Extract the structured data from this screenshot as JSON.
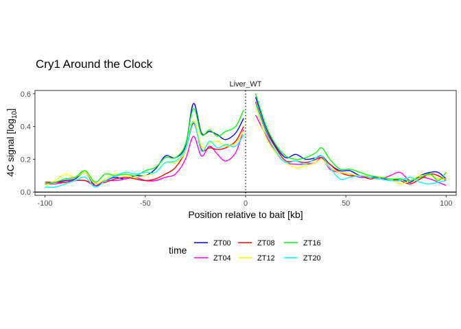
{
  "chart_data": {
    "type": "line",
    "title": "Cry1 Around the Clock",
    "facet_label": "Liver_WT",
    "xlabel": "Position relative to bait [kb]",
    "ylabel_main": "4C signal [log",
    "ylabel_sub": "10",
    "ylabel_close": "]",
    "xlim": [
      -105,
      105
    ],
    "ylim": [
      -0.02,
      0.62
    ],
    "x_ticks": [
      -100,
      -50,
      0,
      50,
      100
    ],
    "x_tick_labels": [
      "-100",
      "-50",
      "0",
      "50",
      "100"
    ],
    "y_ticks": [
      0.0,
      0.2,
      0.4,
      0.6
    ],
    "y_tick_labels": [
      "0.0",
      "0.2",
      "0.4",
      "0.6"
    ],
    "bait_position": 0,
    "hline": 0,
    "grid": false,
    "legend": {
      "title": "time",
      "placement": "bottom"
    },
    "series": [
      {
        "name": "ZT00",
        "color": "#0000ff",
        "left": [
          [
            -100,
            0.05
          ],
          [
            -95,
            0.06
          ],
          [
            -90,
            0.07
          ],
          [
            -85,
            0.08
          ],
          [
            -80,
            0.12
          ],
          [
            -75,
            0.04
          ],
          [
            -70,
            0.07
          ],
          [
            -65,
            0.09
          ],
          [
            -60,
            0.08
          ],
          [
            -55,
            0.1
          ],
          [
            -50,
            0.1
          ],
          [
            -45,
            0.14
          ],
          [
            -40,
            0.22
          ],
          [
            -35,
            0.21
          ],
          [
            -30,
            0.28
          ],
          [
            -26,
            0.54
          ],
          [
            -22,
            0.36
          ],
          [
            -18,
            0.37
          ],
          [
            -14,
            0.35
          ],
          [
            -10,
            0.32
          ],
          [
            -5,
            0.36
          ],
          [
            -1,
            0.45
          ]
        ],
        "right": [
          [
            5,
            0.58
          ],
          [
            10,
            0.4
          ],
          [
            15,
            0.28
          ],
          [
            20,
            0.21
          ],
          [
            25,
            0.23
          ],
          [
            30,
            0.2
          ],
          [
            35,
            0.21
          ],
          [
            38,
            0.22
          ],
          [
            42,
            0.17
          ],
          [
            47,
            0.13
          ],
          [
            52,
            0.13
          ],
          [
            57,
            0.1
          ],
          [
            62,
            0.09
          ],
          [
            67,
            0.09
          ],
          [
            72,
            0.07
          ],
          [
            77,
            0.08
          ],
          [
            82,
            0.06
          ],
          [
            87,
            0.1
          ],
          [
            92,
            0.12
          ],
          [
            96,
            0.12
          ],
          [
            100,
            0.08
          ]
        ]
      },
      {
        "name": "ZT04",
        "color": "#ff00ff",
        "left": [
          [
            -100,
            0.05
          ],
          [
            -95,
            0.05
          ],
          [
            -90,
            0.06
          ],
          [
            -85,
            0.07
          ],
          [
            -80,
            0.07
          ],
          [
            -75,
            0.04
          ],
          [
            -70,
            0.07
          ],
          [
            -65,
            0.07
          ],
          [
            -60,
            0.08
          ],
          [
            -55,
            0.09
          ],
          [
            -50,
            0.07
          ],
          [
            -45,
            0.07
          ],
          [
            -40,
            0.09
          ],
          [
            -35,
            0.11
          ],
          [
            -30,
            0.2
          ],
          [
            -26,
            0.34
          ],
          [
            -22,
            0.22
          ],
          [
            -18,
            0.28
          ],
          [
            -14,
            0.23
          ],
          [
            -10,
            0.19
          ],
          [
            -5,
            0.24
          ],
          [
            -1,
            0.38
          ]
        ],
        "right": [
          [
            5,
            0.47
          ],
          [
            10,
            0.35
          ],
          [
            15,
            0.24
          ],
          [
            20,
            0.18
          ],
          [
            25,
            0.17
          ],
          [
            30,
            0.17
          ],
          [
            35,
            0.18
          ],
          [
            38,
            0.21
          ],
          [
            42,
            0.14
          ],
          [
            47,
            0.12
          ],
          [
            52,
            0.11
          ],
          [
            57,
            0.09
          ],
          [
            62,
            0.09
          ],
          [
            67,
            0.08
          ],
          [
            72,
            0.1
          ],
          [
            77,
            0.12
          ],
          [
            82,
            0.07
          ],
          [
            87,
            0.09
          ],
          [
            92,
            0.08
          ],
          [
            96,
            0.06
          ],
          [
            100,
            0.04
          ]
        ]
      },
      {
        "name": "ZT08",
        "color": "#ff0000",
        "left": [
          [
            -100,
            0.06
          ],
          [
            -95,
            0.06
          ],
          [
            -90,
            0.06
          ],
          [
            -85,
            0.07
          ],
          [
            -80,
            0.07
          ],
          [
            -75,
            0.05
          ],
          [
            -70,
            0.06
          ],
          [
            -65,
            0.08
          ],
          [
            -60,
            0.09
          ],
          [
            -55,
            0.08
          ],
          [
            -50,
            0.07
          ],
          [
            -45,
            0.08
          ],
          [
            -40,
            0.11
          ],
          [
            -35,
            0.15
          ],
          [
            -30,
            0.25
          ],
          [
            -26,
            0.42
          ],
          [
            -22,
            0.26
          ],
          [
            -18,
            0.27
          ],
          [
            -14,
            0.26
          ],
          [
            -10,
            0.27
          ],
          [
            -5,
            0.31
          ],
          [
            -1,
            0.4
          ]
        ],
        "right": [
          [
            5,
            0.55
          ],
          [
            10,
            0.38
          ],
          [
            15,
            0.27
          ],
          [
            20,
            0.19
          ],
          [
            25,
            0.19
          ],
          [
            30,
            0.18
          ],
          [
            35,
            0.2
          ],
          [
            38,
            0.21
          ],
          [
            42,
            0.17
          ],
          [
            47,
            0.12
          ],
          [
            52,
            0.1
          ],
          [
            57,
            0.1
          ],
          [
            62,
            0.08
          ],
          [
            67,
            0.09
          ],
          [
            72,
            0.08
          ],
          [
            77,
            0.07
          ],
          [
            82,
            0.05
          ],
          [
            87,
            0.08
          ],
          [
            92,
            0.11
          ],
          [
            96,
            0.1
          ],
          [
            100,
            0.07
          ]
        ]
      },
      {
        "name": "ZT12",
        "color": "#ffff00",
        "left": [
          [
            -100,
            0.04
          ],
          [
            -95,
            0.07
          ],
          [
            -90,
            0.11
          ],
          [
            -85,
            0.09
          ],
          [
            -80,
            0.12
          ],
          [
            -75,
            0.05
          ],
          [
            -70,
            0.08
          ],
          [
            -65,
            0.11
          ],
          [
            -60,
            0.1
          ],
          [
            -55,
            0.09
          ],
          [
            -50,
            0.1
          ],
          [
            -45,
            0.12
          ],
          [
            -40,
            0.18
          ],
          [
            -35,
            0.18
          ],
          [
            -30,
            0.25
          ],
          [
            -26,
            0.44
          ],
          [
            -22,
            0.28
          ],
          [
            -18,
            0.3
          ],
          [
            -14,
            0.31
          ],
          [
            -10,
            0.28
          ],
          [
            -5,
            0.3
          ],
          [
            -1,
            0.37
          ]
        ],
        "right": [
          [
            5,
            0.52
          ],
          [
            10,
            0.34
          ],
          [
            15,
            0.24
          ],
          [
            20,
            0.18
          ],
          [
            25,
            0.15
          ],
          [
            30,
            0.16
          ],
          [
            35,
            0.18
          ],
          [
            38,
            0.2
          ],
          [
            42,
            0.15
          ],
          [
            47,
            0.12
          ],
          [
            52,
            0.11
          ],
          [
            57,
            0.1
          ],
          [
            62,
            0.1
          ],
          [
            67,
            0.09
          ],
          [
            72,
            0.08
          ],
          [
            77,
            0.05
          ],
          [
            82,
            0.07
          ],
          [
            87,
            0.1
          ],
          [
            92,
            0.1
          ],
          [
            96,
            0.08
          ],
          [
            100,
            0.08
          ]
        ]
      },
      {
        "name": "ZT16",
        "color": "#00ff00",
        "left": [
          [
            -100,
            0.05
          ],
          [
            -95,
            0.06
          ],
          [
            -90,
            0.08
          ],
          [
            -85,
            0.09
          ],
          [
            -80,
            0.13
          ],
          [
            -75,
            0.06
          ],
          [
            -70,
            0.11
          ],
          [
            -65,
            0.1
          ],
          [
            -60,
            0.11
          ],
          [
            -55,
            0.1
          ],
          [
            -50,
            0.13
          ],
          [
            -45,
            0.15
          ],
          [
            -40,
            0.21
          ],
          [
            -35,
            0.21
          ],
          [
            -30,
            0.29
          ],
          [
            -26,
            0.51
          ],
          [
            -22,
            0.35
          ],
          [
            -18,
            0.38
          ],
          [
            -14,
            0.34
          ],
          [
            -10,
            0.37
          ],
          [
            -5,
            0.4
          ],
          [
            -1,
            0.5
          ]
        ],
        "right": [
          [
            5,
            0.6
          ],
          [
            10,
            0.41
          ],
          [
            15,
            0.29
          ],
          [
            20,
            0.22
          ],
          [
            25,
            0.2
          ],
          [
            30,
            0.21
          ],
          [
            35,
            0.24
          ],
          [
            38,
            0.27
          ],
          [
            42,
            0.2
          ],
          [
            47,
            0.14
          ],
          [
            52,
            0.14
          ],
          [
            57,
            0.12
          ],
          [
            62,
            0.1
          ],
          [
            67,
            0.09
          ],
          [
            72,
            0.08
          ],
          [
            77,
            0.08
          ],
          [
            82,
            0.07
          ],
          [
            87,
            0.09
          ],
          [
            92,
            0.11
          ],
          [
            96,
            0.07
          ],
          [
            100,
            0.12
          ]
        ]
      },
      {
        "name": "ZT20",
        "color": "#00ffff",
        "left": [
          [
            -100,
            0.03
          ],
          [
            -95,
            0.03
          ],
          [
            -90,
            0.05
          ],
          [
            -85,
            0.07
          ],
          [
            -80,
            0.09
          ],
          [
            -75,
            0.03
          ],
          [
            -70,
            0.07
          ],
          [
            -65,
            0.1
          ],
          [
            -60,
            0.12
          ],
          [
            -55,
            0.11
          ],
          [
            -50,
            0.12
          ],
          [
            -45,
            0.12
          ],
          [
            -40,
            0.18
          ],
          [
            -35,
            0.19
          ],
          [
            -30,
            0.26
          ],
          [
            -26,
            0.43
          ],
          [
            -22,
            0.25
          ],
          [
            -18,
            0.31
          ],
          [
            -14,
            0.27
          ],
          [
            -10,
            0.29
          ],
          [
            -5,
            0.28
          ],
          [
            -1,
            0.35
          ]
        ],
        "right": [
          [
            5,
            0.54
          ],
          [
            10,
            0.37
          ],
          [
            15,
            0.25
          ],
          [
            20,
            0.18
          ],
          [
            25,
            0.19
          ],
          [
            30,
            0.17
          ],
          [
            35,
            0.21
          ],
          [
            38,
            0.22
          ],
          [
            42,
            0.15
          ],
          [
            47,
            0.08
          ],
          [
            52,
            0.09
          ],
          [
            57,
            0.1
          ],
          [
            62,
            0.09
          ],
          [
            67,
            0.08
          ],
          [
            72,
            0.07
          ],
          [
            77,
            0.07
          ],
          [
            82,
            0.09
          ],
          [
            87,
            0.06
          ],
          [
            92,
            0.05
          ],
          [
            96,
            0.06
          ],
          [
            100,
            0.07
          ]
        ]
      }
    ]
  }
}
